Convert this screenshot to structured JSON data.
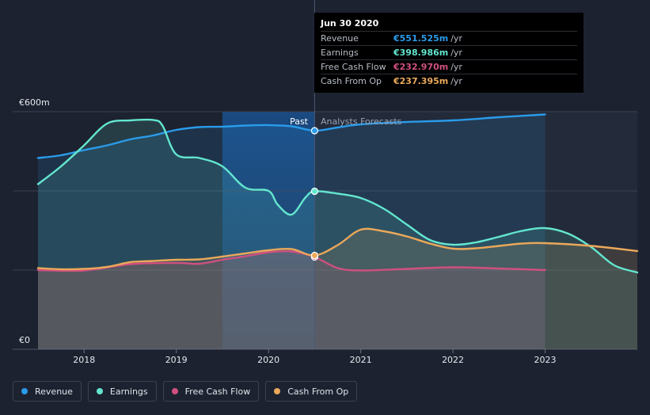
{
  "tooltip": {
    "date": "Jun 30 2020",
    "rows": [
      {
        "label": "Revenue",
        "value": "€551.525m",
        "unit": "/yr",
        "color": "#2a9bea"
      },
      {
        "label": "Earnings",
        "value": "€398.986m",
        "unit": "/yr",
        "color": "#63e6cf"
      },
      {
        "label": "Free Cash Flow",
        "value": "€232.970m",
        "unit": "/yr",
        "color": "#d0507f"
      },
      {
        "label": "Cash From Op",
        "value": "€237.395m",
        "unit": "/yr",
        "color": "#eba85a"
      }
    ]
  },
  "legend": [
    {
      "label": "Revenue",
      "color": "#2a9bea"
    },
    {
      "label": "Earnings",
      "color": "#63e6cf"
    },
    {
      "label": "Free Cash Flow",
      "color": "#d0507f"
    },
    {
      "label": "Cash From Op",
      "color": "#eba85a"
    }
  ],
  "chart_data": {
    "type": "area",
    "y_top_label": "€600m",
    "y_bottom_label": "€0",
    "ylim": [
      0,
      600
    ],
    "xlim": [
      2017.5,
      2024.0
    ],
    "x_ticks": [
      2018,
      2019,
      2020,
      2021,
      2022,
      2023
    ],
    "x_tick_labels": [
      "2018",
      "2019",
      "2020",
      "2021",
      "2022",
      "2023"
    ],
    "past_label": "Past",
    "forecast_label": "Analysts Forecasts",
    "divider_x": 2020.5,
    "marker_x": 2020.5,
    "series": [
      {
        "name": "Revenue",
        "color": "#2a9bea",
        "points": [
          [
            2017.5,
            483
          ],
          [
            2017.75,
            490
          ],
          [
            2018.0,
            503
          ],
          [
            2018.25,
            515
          ],
          [
            2018.5,
            530
          ],
          [
            2018.75,
            540
          ],
          [
            2019.0,
            554
          ],
          [
            2019.25,
            561
          ],
          [
            2019.5,
            562
          ],
          [
            2019.75,
            565
          ],
          [
            2020.0,
            566
          ],
          [
            2020.25,
            563
          ],
          [
            2020.5,
            552
          ],
          [
            2020.75,
            560
          ],
          [
            2021.0,
            568
          ],
          [
            2021.5,
            574
          ],
          [
            2022.0,
            578
          ],
          [
            2022.5,
            586
          ],
          [
            2023.0,
            593
          ]
        ]
      },
      {
        "name": "Earnings",
        "color": "#63e6cf",
        "points": [
          [
            2017.5,
            417
          ],
          [
            2017.75,
            462
          ],
          [
            2018.0,
            515
          ],
          [
            2018.25,
            570
          ],
          [
            2018.5,
            578
          ],
          [
            2018.75,
            579
          ],
          [
            2018.85,
            565
          ],
          [
            2019.0,
            492
          ],
          [
            2019.25,
            483
          ],
          [
            2019.5,
            462
          ],
          [
            2019.75,
            408
          ],
          [
            2020.0,
            400
          ],
          [
            2020.1,
            365
          ],
          [
            2020.25,
            340
          ],
          [
            2020.4,
            383
          ],
          [
            2020.5,
            399
          ],
          [
            2020.75,
            393
          ],
          [
            2021.0,
            382
          ],
          [
            2021.25,
            355
          ],
          [
            2021.5,
            315
          ],
          [
            2021.75,
            276
          ],
          [
            2022.0,
            264
          ],
          [
            2022.25,
            270
          ],
          [
            2022.5,
            284
          ],
          [
            2022.75,
            299
          ],
          [
            2023.0,
            306
          ],
          [
            2023.25,
            292
          ],
          [
            2023.5,
            258
          ],
          [
            2023.75,
            212
          ],
          [
            2024.0,
            194
          ]
        ]
      },
      {
        "name": "Free Cash Flow",
        "color": "#d0507f",
        "points": [
          [
            2017.5,
            200
          ],
          [
            2018.0,
            199
          ],
          [
            2018.5,
            215
          ],
          [
            2019.0,
            218
          ],
          [
            2019.25,
            216
          ],
          [
            2019.5,
            226
          ],
          [
            2019.75,
            235
          ],
          [
            2020.0,
            245
          ],
          [
            2020.25,
            247
          ],
          [
            2020.5,
            233
          ],
          [
            2020.75,
            205
          ],
          [
            2021.0,
            199
          ],
          [
            2021.5,
            203
          ],
          [
            2022.0,
            207
          ],
          [
            2022.5,
            204
          ],
          [
            2023.0,
            200
          ]
        ]
      },
      {
        "name": "Cash From Op",
        "color": "#eba85a",
        "points": [
          [
            2017.5,
            205
          ],
          [
            2017.75,
            202
          ],
          [
            2018.0,
            203
          ],
          [
            2018.25,
            208
          ],
          [
            2018.5,
            220
          ],
          [
            2018.75,
            223
          ],
          [
            2019.0,
            226
          ],
          [
            2019.25,
            227
          ],
          [
            2019.5,
            234
          ],
          [
            2019.75,
            242
          ],
          [
            2020.0,
            250
          ],
          [
            2020.25,
            253
          ],
          [
            2020.5,
            237
          ],
          [
            2020.75,
            263
          ],
          [
            2021.0,
            302
          ],
          [
            2021.25,
            298
          ],
          [
            2021.5,
            285
          ],
          [
            2021.75,
            267
          ],
          [
            2022.0,
            254
          ],
          [
            2022.25,
            255
          ],
          [
            2022.5,
            261
          ],
          [
            2022.75,
            267
          ],
          [
            2023.0,
            268
          ],
          [
            2023.5,
            261
          ],
          [
            2024.0,
            248
          ]
        ]
      }
    ]
  }
}
